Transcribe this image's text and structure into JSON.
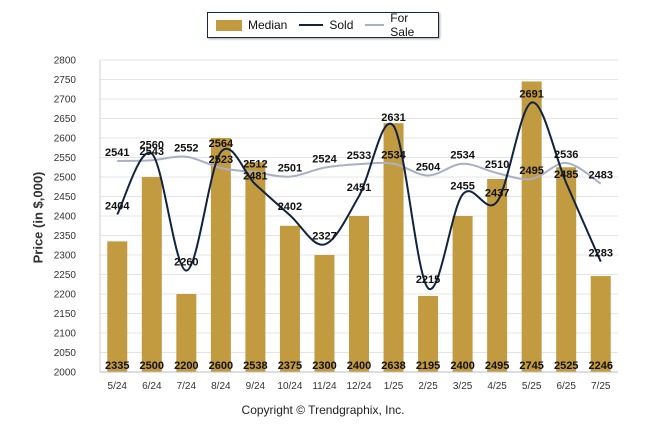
{
  "legend": {
    "median": "Median",
    "sold": "Sold",
    "for_sale": "For Sale"
  },
  "copyright": "Copyright © Trendgraphix, Inc.",
  "colors": {
    "median_bar": "#c29b40",
    "sold_line": "#10233f",
    "for_sale_line": "#a9b0c6"
  },
  "chart_data": {
    "type": "bar",
    "title": "",
    "xlabel": "",
    "ylabel": "Price (in $,000)",
    "ylim": [
      2000,
      2800
    ],
    "yticks": [
      2000,
      2050,
      2100,
      2150,
      2200,
      2250,
      2300,
      2350,
      2400,
      2450,
      2500,
      2550,
      2600,
      2650,
      2700,
      2750,
      2800
    ],
    "grid": true,
    "legend_position": "top-center",
    "categories": [
      "5/24",
      "6/24",
      "7/24",
      "8/24",
      "9/24",
      "10/24",
      "11/24",
      "12/24",
      "1/25",
      "2/25",
      "3/25",
      "4/25",
      "5/25",
      "6/25",
      "7/25"
    ],
    "series": [
      {
        "name": "Median",
        "type": "bar",
        "values": [
          2335,
          2500,
          2200,
          2600,
          2538,
          2375,
          2300,
          2400,
          2638,
          2195,
          2400,
          2495,
          2745,
          2525,
          2246
        ]
      },
      {
        "name": "Sold",
        "type": "line",
        "values": [
          2404,
          2560,
          2260,
          2564,
          2481,
          2402,
          2327,
          2451,
          2631,
          2215,
          2455,
          2437,
          2691,
          2485,
          2283
        ]
      },
      {
        "name": "For Sale",
        "type": "line",
        "values": [
          2541,
          2543,
          2552,
          2523,
          2512,
          2501,
          2524,
          2533,
          2534,
          2504,
          2534,
          2510,
          2495,
          2536,
          2483
        ]
      }
    ]
  }
}
